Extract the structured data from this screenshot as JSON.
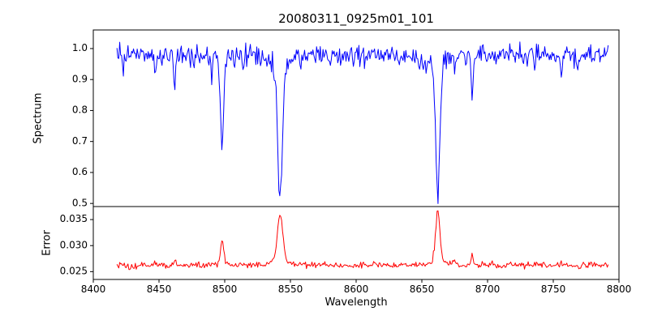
{
  "chart_data": [
    {
      "type": "line",
      "name": "spectrum",
      "title": "20080311_0925m01_101",
      "ylabel": "Spectrum",
      "line_color": "#0000ff",
      "axis_color": "#000000",
      "xlim": [
        8400,
        8800
      ],
      "ylim": [
        0.49,
        1.06
      ],
      "yticks": [
        0.5,
        0.6,
        0.7,
        0.8,
        0.9,
        1.0
      ],
      "yticklabels": [
        "0.5",
        "0.6",
        "0.7",
        "0.8",
        "0.9",
        "1.0"
      ],
      "x_start": 8418,
      "x_end": 8792,
      "x_step": 0.7,
      "continuum": 0.98,
      "noise_sigma": 0.016,
      "absorption_lines": [
        {
          "center": 8498.0,
          "depth": 0.29,
          "width": 1.3
        },
        {
          "center": 8542.1,
          "depth": 0.47,
          "width": 1.8
        },
        {
          "center": 8662.1,
          "depth": 0.44,
          "width": 1.6
        }
      ],
      "minor_lines": [
        {
          "center": 8423.0,
          "depth": 0.05,
          "width": 0.6
        },
        {
          "center": 8447.0,
          "depth": 0.05,
          "width": 0.6
        },
        {
          "center": 8462.0,
          "depth": 0.08,
          "width": 0.7
        },
        {
          "center": 8476.0,
          "depth": 0.04,
          "width": 0.5
        },
        {
          "center": 8490.0,
          "depth": 0.05,
          "width": 0.5
        },
        {
          "center": 8514.0,
          "depth": 0.05,
          "width": 0.6
        },
        {
          "center": 8527.0,
          "depth": 0.04,
          "width": 0.5
        },
        {
          "center": 8580.0,
          "depth": 0.04,
          "width": 0.6
        },
        {
          "center": 8598.0,
          "depth": 0.04,
          "width": 0.5
        },
        {
          "center": 8620.0,
          "depth": 0.03,
          "width": 0.5
        },
        {
          "center": 8648.0,
          "depth": 0.04,
          "width": 0.5
        },
        {
          "center": 8675.0,
          "depth": 0.06,
          "width": 0.6
        },
        {
          "center": 8688.5,
          "depth": 0.13,
          "width": 0.8
        },
        {
          "center": 8713.0,
          "depth": 0.04,
          "width": 0.5
        },
        {
          "center": 8736.0,
          "depth": 0.06,
          "width": 0.6
        },
        {
          "center": 8756.0,
          "depth": 0.07,
          "width": 0.6
        },
        {
          "center": 8770.0,
          "depth": 0.04,
          "width": 0.5
        }
      ]
    },
    {
      "type": "line",
      "name": "error",
      "ylabel": "Error",
      "xlabel": "Wavelength",
      "line_color": "#ff0000",
      "axis_color": "#000000",
      "xlim": [
        8400,
        8800
      ],
      "ylim": [
        0.0235,
        0.0375
      ],
      "yticks": [
        0.025,
        0.03,
        0.035
      ],
      "yticklabels": [
        "0.025",
        "0.030",
        "0.035"
      ],
      "xticks": [
        8400,
        8450,
        8500,
        8550,
        8600,
        8650,
        8700,
        8750,
        8800
      ],
      "xticklabels": [
        "8400",
        "8450",
        "8500",
        "8550",
        "8600",
        "8650",
        "8700",
        "8750",
        "8800"
      ],
      "x_start": 8418,
      "x_end": 8792,
      "x_step": 0.7,
      "baseline": 0.0262,
      "noise_sigma": 0.0003,
      "peaks": [
        {
          "center": 8498.0,
          "height": 0.0048,
          "width": 1.2
        },
        {
          "center": 8542.1,
          "height": 0.0098,
          "width": 2.0
        },
        {
          "center": 8662.1,
          "height": 0.0105,
          "width": 1.6
        }
      ],
      "minor_peaks": [
        {
          "center": 8462.0,
          "height": 0.0008,
          "width": 0.8
        },
        {
          "center": 8675.0,
          "height": 0.0008,
          "width": 0.7
        },
        {
          "center": 8688.5,
          "height": 0.002,
          "width": 0.9
        },
        {
          "center": 8736.0,
          "height": 0.0006,
          "width": 0.7
        },
        {
          "center": 8756.0,
          "height": 0.0007,
          "width": 0.7
        }
      ]
    }
  ]
}
